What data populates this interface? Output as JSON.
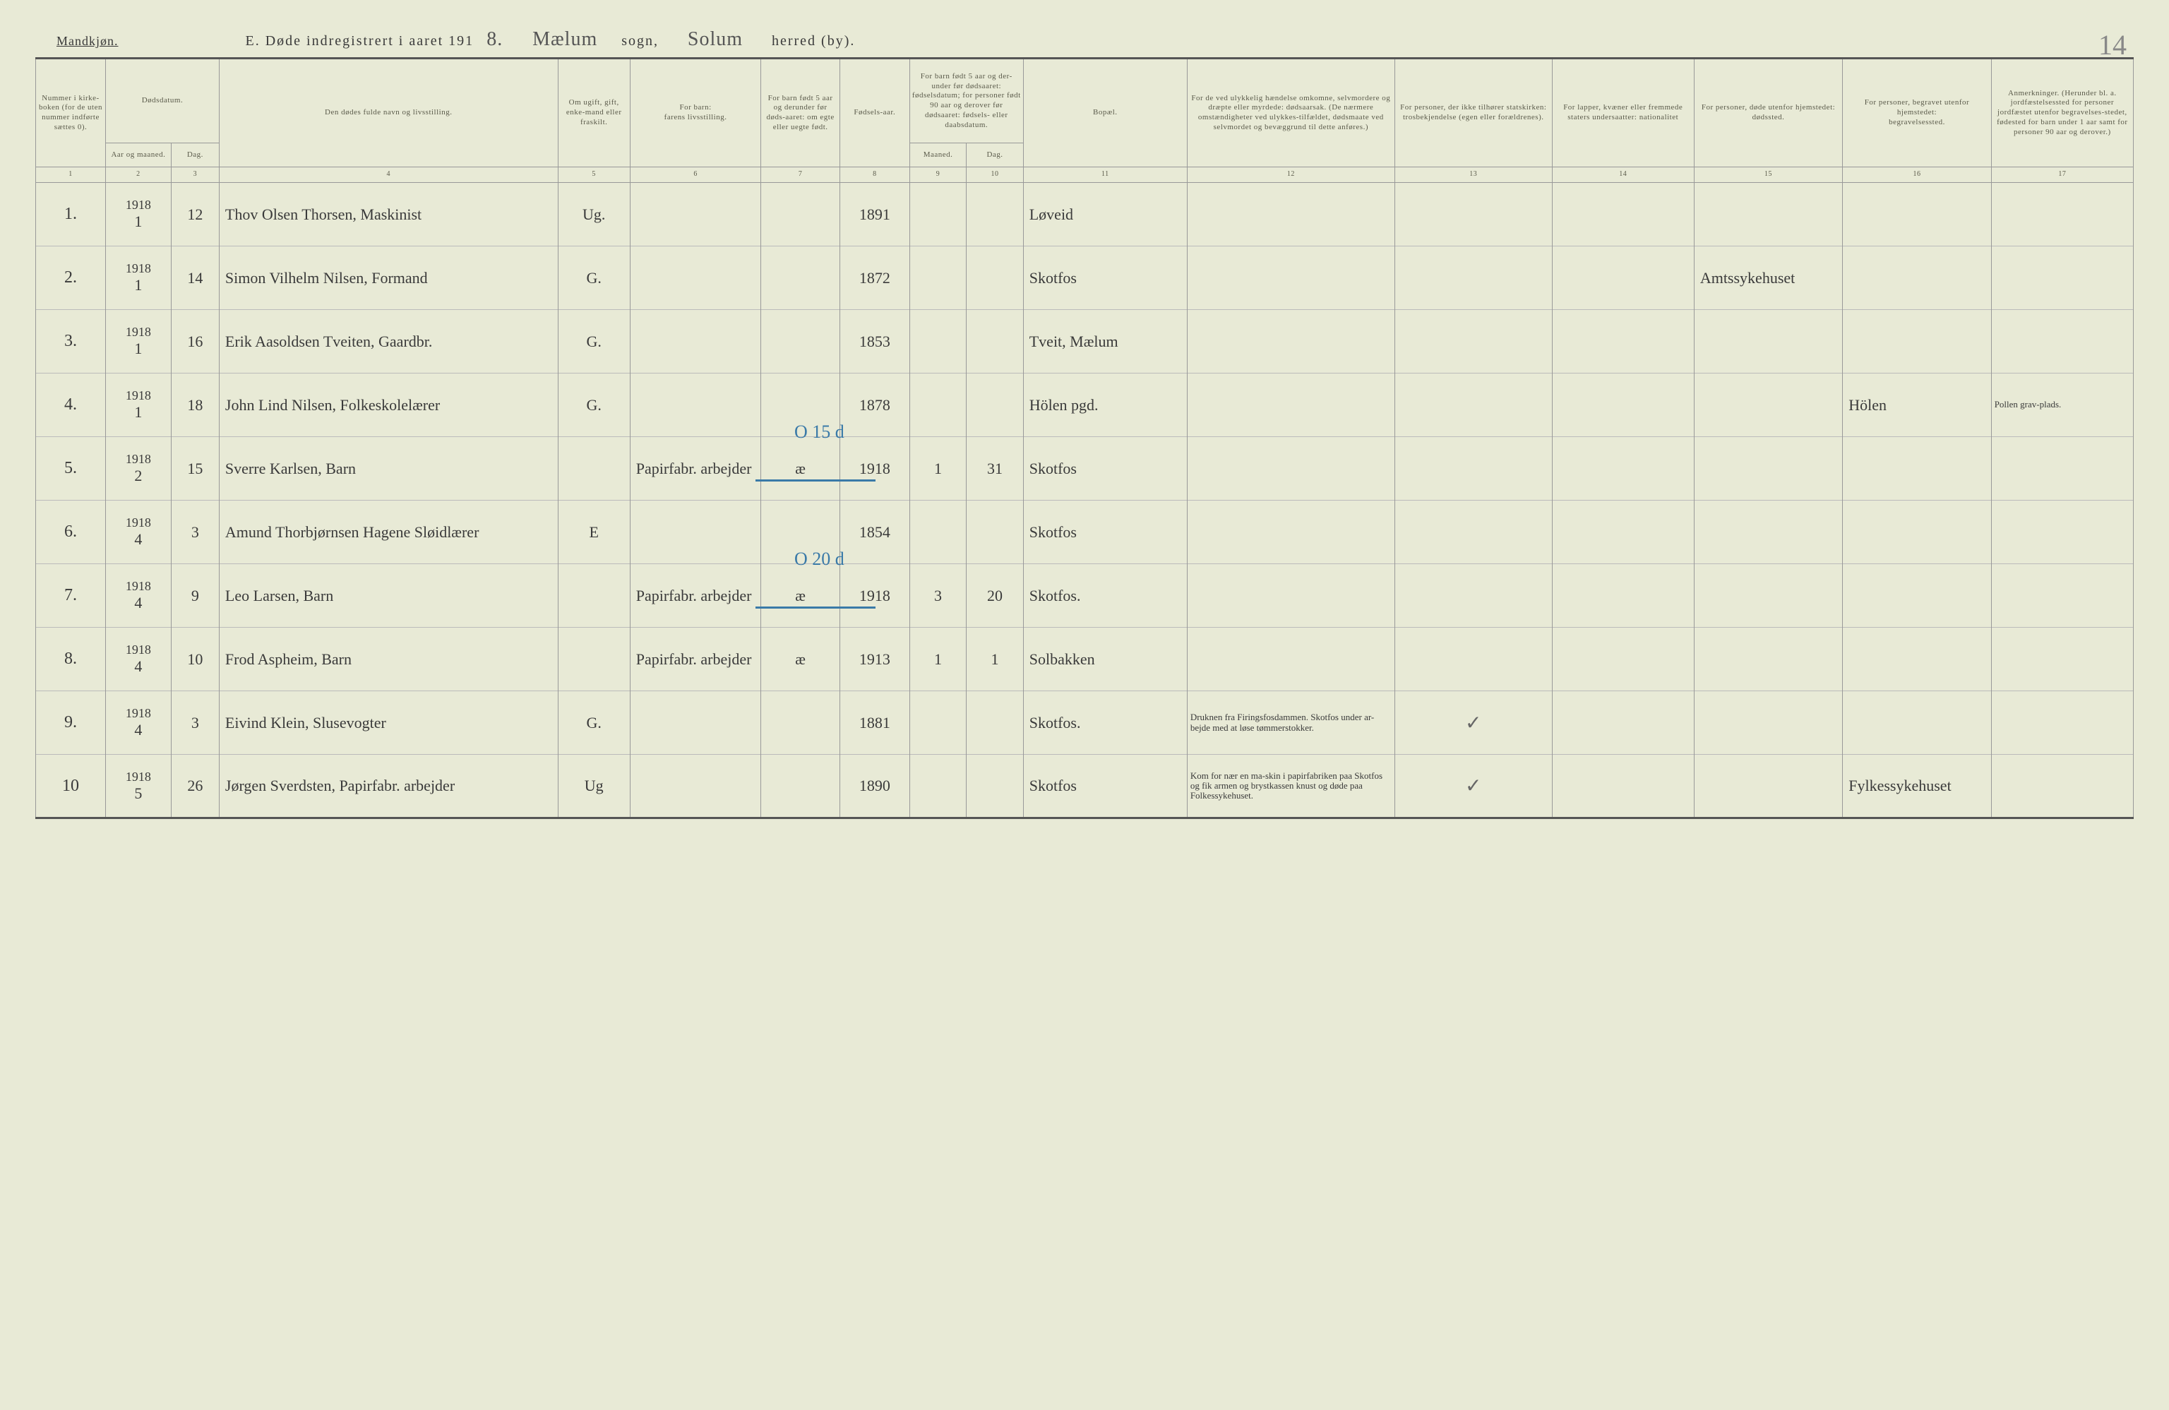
{
  "header": {
    "gender": "Mandkjøn.",
    "title_prefix": "E.  Døde indregistrert i aaret 191",
    "year_suffix": "8.",
    "sogn_label": "sogn,",
    "sogn_value": "Mælum",
    "herred_label": "herred (by).",
    "herred_value": "Solum",
    "page_number": "14"
  },
  "columns": {
    "c1": "Nummer i kirke-boken (for de uten nummer indførte sættes 0).",
    "c2a": "Dødsdatum.",
    "c2_sub1": "Aar og maaned.",
    "c2_sub2": "Dag.",
    "c4": "Den dødes fulde navn og livsstilling.",
    "c5": "Om ugift, gift, enke-mand eller fraskilt.",
    "c6a": "For barn:",
    "c6b": "farens livsstilling.",
    "c7": "For barn født 5 aar og derunder før døds-aaret: om egte eller uegte født.",
    "c8": "Fødsels-aar.",
    "c9a": "For barn født 5 aar og der-under før dødsaaret: fødselsdatum; for personer født 90 aar og derover før dødsaaret: fødsels- eller daabsdatum.",
    "c9_sub1": "Maaned.",
    "c9_sub2": "Dag.",
    "c11": "Bopæl.",
    "c12": "For de ved ulykkelig hændelse omkomne, selvmordere og dræpte eller myrdede: dødsaarsak. (De nærmere omstændigheter ved ulykkes-tilfældet, dødsmaate ved selvmordet og bevæggrund til dette anføres.)",
    "c13": "For personer, der ikke tilhører statskirken: trosbekjendelse (egen eller forældrenes).",
    "c14": "For lapper, kvæner eller fremmede staters undersaatter: nationalitet",
    "c15a": "For personer, døde utenfor hjemstedet:",
    "c15b": "dødssted.",
    "c16a": "For personer, begravet utenfor hjemstedet:",
    "c16b": "begravelsessted.",
    "c17": "Anmerkninger. (Herunder bl. a. jordfæstelsessted for personer jordfæstet utenfor begravelses-stedet, fødested for barn under 1 aar samt for personer 90 aar og derover.)"
  },
  "colnums": [
    "1",
    "2",
    "3",
    "4",
    "5",
    "6",
    "7",
    "8",
    "9",
    "10",
    "11",
    "12",
    "13",
    "14",
    "15",
    "16",
    "17"
  ],
  "rows": [
    {
      "n": "1.",
      "yr": "1918",
      "mo": "1",
      "d": "12",
      "name": "Thov Olsen Thorsen, Maskinist",
      "stat": "Ug.",
      "occ": "",
      "egte": "",
      "faar": "1891",
      "fm": "",
      "fd": "",
      "bopel": "Løveid",
      "c12": "",
      "c13": "",
      "c14": "",
      "c15": "",
      "c16": "",
      "c17": ""
    },
    {
      "n": "2.",
      "yr": "1918",
      "mo": "1",
      "d": "14",
      "name": "Simon Vilhelm Nilsen, Formand",
      "stat": "G.",
      "occ": "",
      "egte": "",
      "faar": "1872",
      "fm": "",
      "fd": "",
      "bopel": "Skotfos",
      "c12": "",
      "c13": "",
      "c14": "",
      "c15": "Amtssykehuset",
      "c16": "",
      "c17": ""
    },
    {
      "n": "3.",
      "yr": "1918",
      "mo": "1",
      "d": "16",
      "name": "Erik Aasoldsen Tveiten, Gaardbr.",
      "stat": "G.",
      "occ": "",
      "egte": "",
      "faar": "1853",
      "fm": "",
      "fd": "",
      "bopel": "Tveit, Mælum",
      "c12": "",
      "c13": "",
      "c14": "",
      "c15": "",
      "c16": "",
      "c17": ""
    },
    {
      "n": "4.",
      "yr": "1918",
      "mo": "1",
      "d": "18",
      "name": "John Lind Nilsen, Folkeskolelærer",
      "stat": "G.",
      "occ": "",
      "egte": "",
      "faar": "1878",
      "fm": "",
      "fd": "",
      "bopel": "Hölen pgd.",
      "c12": "",
      "c13": "",
      "c14": "",
      "c15": "",
      "c16": "Hölen",
      "c17": "Pollen grav-plads."
    },
    {
      "n": "5.",
      "yr": "1918",
      "mo": "2",
      "d": "15",
      "name": "Sverre Karlsen, Barn",
      "stat": "",
      "occ": "Papirfabr. arbejder",
      "egte": "æ",
      "faar": "1918",
      "fm": "1",
      "fd": "31",
      "bopel": "Skotfos",
      "c12": "",
      "c13": "",
      "c14": "",
      "c15": "",
      "c16": "",
      "c17": ""
    },
    {
      "n": "6.",
      "yr": "1918",
      "mo": "4",
      "d": "3",
      "name": "Amund Thorbjørnsen Hagene Sløidlærer",
      "stat": "E",
      "occ": "",
      "egte": "",
      "faar": "1854",
      "fm": "",
      "fd": "",
      "bopel": "Skotfos",
      "c12": "",
      "c13": "",
      "c14": "",
      "c15": "",
      "c16": "",
      "c17": ""
    },
    {
      "n": "7.",
      "yr": "1918",
      "mo": "4",
      "d": "9",
      "name": "Leo Larsen, Barn",
      "stat": "",
      "occ": "Papirfabr. arbejder",
      "egte": "æ",
      "faar": "1918",
      "fm": "3",
      "fd": "20",
      "bopel": "Skotfos.",
      "c12": "",
      "c13": "",
      "c14": "",
      "c15": "",
      "c16": "",
      "c17": ""
    },
    {
      "n": "8.",
      "yr": "1918",
      "mo": "4",
      "d": "10",
      "name": "Frod Aspheim, Barn",
      "stat": "",
      "occ": "Papirfabr. arbejder",
      "egte": "æ",
      "faar": "1913",
      "fm": "1",
      "fd": "1",
      "bopel": "Solbakken",
      "c12": "",
      "c13": "",
      "c14": "",
      "c15": "",
      "c16": "",
      "c17": ""
    },
    {
      "n": "9.",
      "yr": "1918",
      "mo": "4",
      "d": "3",
      "name": "Eivind Klein, Slusevogter",
      "stat": "G.",
      "occ": "",
      "egte": "",
      "faar": "1881",
      "fm": "",
      "fd": "",
      "bopel": "Skotfos.",
      "c12": "Druknen fra Firingsfosdammen. Skotfos under ar-bejde med at løse tømmerstokker.",
      "c13": "✓",
      "c14": "",
      "c15": "",
      "c16": "",
      "c17": ""
    },
    {
      "n": "10",
      "yr": "1918",
      "mo": "5",
      "d": "26",
      "name": "Jørgen Sverdsten, Papirfabr. arbejder",
      "stat": "Ug",
      "occ": "",
      "egte": "",
      "faar": "1890",
      "fm": "",
      "fd": "",
      "bopel": "Skotfos",
      "c12": "Kom for nær en ma-skin i papirfabriken paa Skotfos og fik armen og brystkassen knust og døde paa Folkessykehuset.",
      "c13": "✓",
      "c14": "",
      "c15": "",
      "c16": "Fylkessykehuset",
      "c17": ""
    }
  ],
  "annotations": {
    "row5": "O 15 d",
    "row7": "O 20 d"
  },
  "style": {
    "bg": "#e8ead6",
    "rule": "#555",
    "grid": "#999",
    "ink": "#3a3a3a",
    "blue": "#3a7aa8"
  }
}
